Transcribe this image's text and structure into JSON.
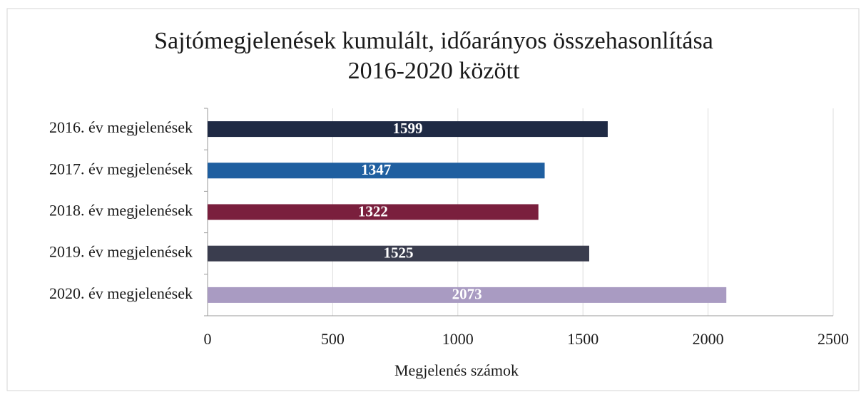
{
  "chart_data": {
    "type": "bar",
    "orientation": "horizontal",
    "title": [
      "Sajtómegjelenések kumulált, időarányos összehasonlítása",
      "2016-2020 között"
    ],
    "categories": [
      "2016. év megjelenések",
      "2017. év megjelenések",
      "2018. év megjelenések",
      "2019. év megjelenések",
      "2020. év megjelenések"
    ],
    "values": [
      1599,
      1347,
      1322,
      1525,
      2073
    ],
    "colors": [
      "#1f2a44",
      "#1f5fa0",
      "#7a1f3d",
      "#3a3d4e",
      "#a99bc2"
    ],
    "xlabel": "Megjelenés számok",
    "xlim": [
      0,
      2500
    ],
    "xticks": [
      0,
      500,
      1000,
      1500,
      2000,
      2500
    ],
    "grid": true
  }
}
